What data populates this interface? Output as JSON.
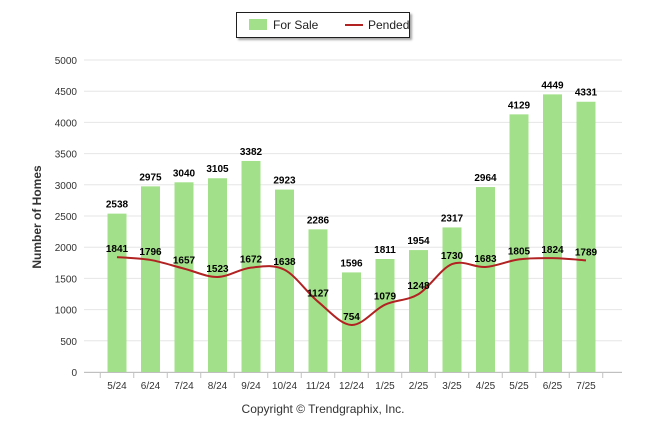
{
  "chart_data": {
    "type": "bar",
    "categories": [
      "5/24",
      "6/24",
      "7/24",
      "8/24",
      "9/24",
      "10/24",
      "11/24",
      "12/24",
      "1/25",
      "2/25",
      "3/25",
      "4/25",
      "5/25",
      "6/25",
      "7/25"
    ],
    "series": [
      {
        "name": "For Sale",
        "kind": "bar",
        "color": "#a3e08a",
        "values": [
          2538,
          2975,
          3040,
          3105,
          3382,
          2923,
          2286,
          1596,
          1811,
          1954,
          2317,
          2964,
          4129,
          4449,
          4331
        ]
      },
      {
        "name": "Pended",
        "kind": "line",
        "color": "#b22222",
        "values": [
          1841,
          1796,
          1657,
          1523,
          1672,
          1638,
          1127,
          754,
          1079,
          1248,
          1730,
          1683,
          1805,
          1824,
          1789
        ]
      }
    ],
    "ylabel": "Number of Homes",
    "ylim": [
      0,
      5000
    ],
    "yticks": [
      0,
      500,
      1000,
      1500,
      2000,
      2500,
      3000,
      3500,
      4000,
      4500,
      5000
    ],
    "grid": true,
    "legend": "top-center"
  },
  "footer": "Copyright © Trendgraphix, Inc."
}
